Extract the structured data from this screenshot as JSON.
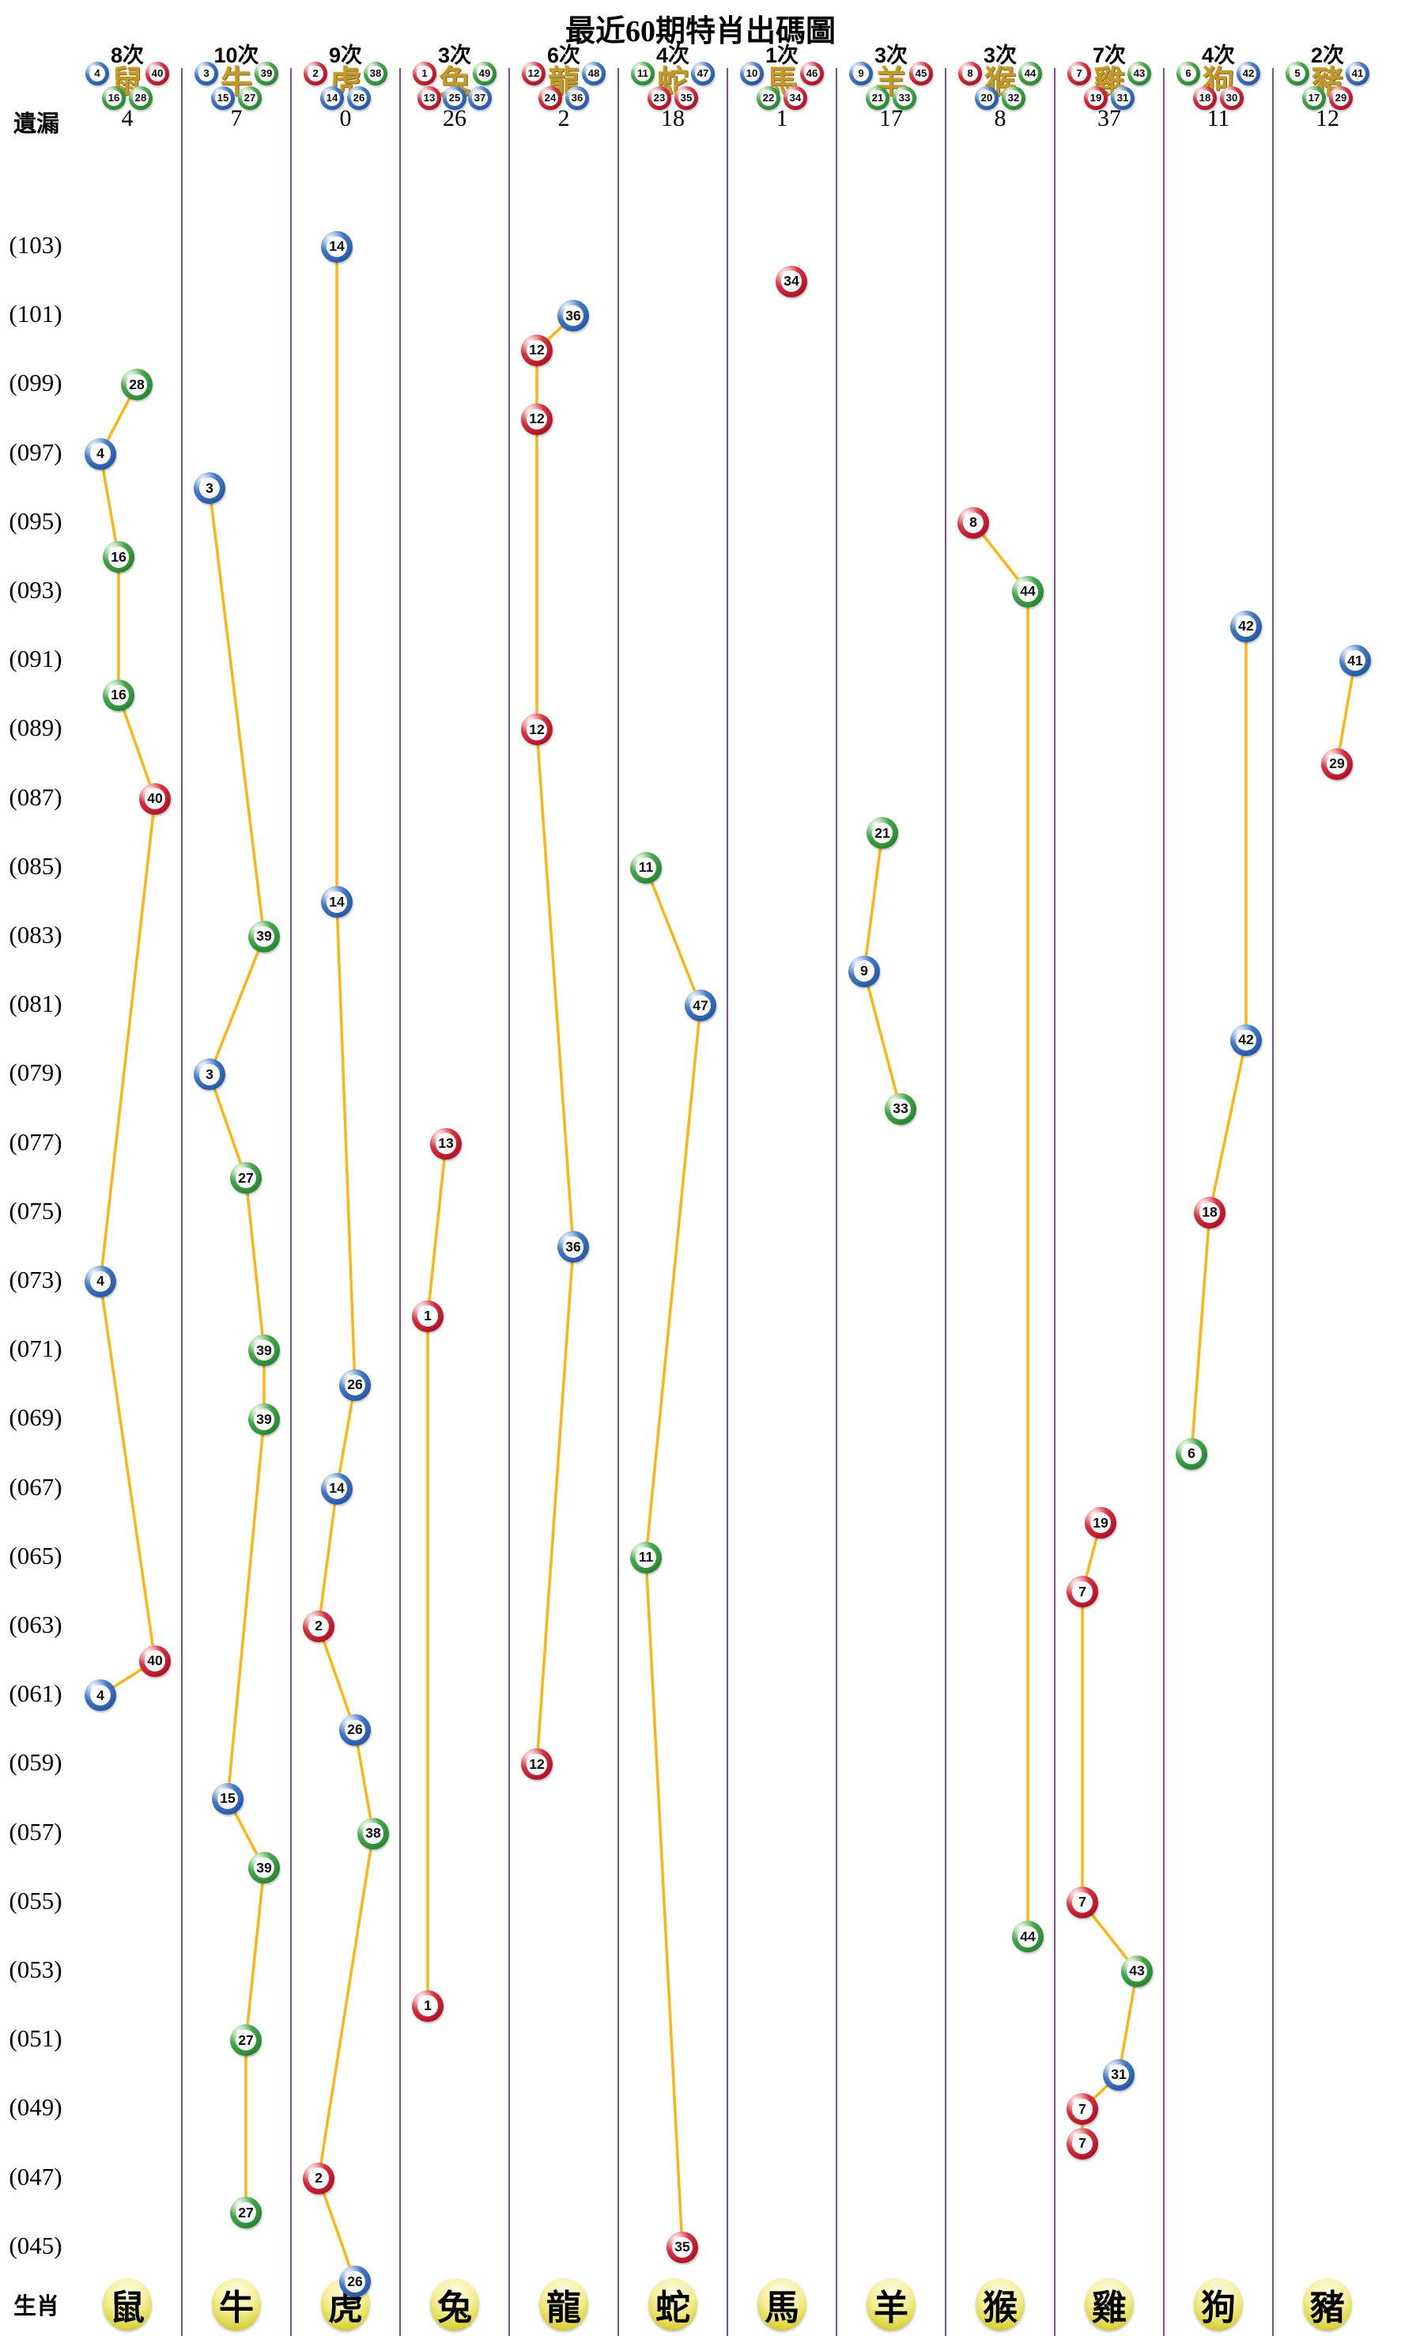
{
  "title": "最近60期特肖出碼圖",
  "labels": {
    "missing": "遺漏",
    "zodiac": "生肖"
  },
  "colors": {
    "red": "#C11F2E",
    "blue": "#2A5CAC",
    "green": "#2C8A35",
    "line": "#FDB515",
    "separator": "#7C4FA0",
    "badge_yellow": "#E3DB48",
    "glyph_gold": "#C2992E"
  },
  "chart_data": {
    "type": "scatter",
    "title": "最近60期特肖出碼圖",
    "x_categories": [
      "鼠",
      "牛",
      "虎",
      "兔",
      "龍",
      "蛇",
      "馬",
      "羊",
      "猴",
      "雞",
      "狗",
      "豬"
    ],
    "period_axis": {
      "top_period": 103,
      "bottom_period": 44,
      "tick_step": 2
    },
    "row_labels": [
      "(103)",
      "(101)",
      "(099)",
      "(097)",
      "(095)",
      "(093)",
      "(091)",
      "(089)",
      "(087)",
      "(085)",
      "(083)",
      "(081)",
      "(079)",
      "(077)",
      "(075)",
      "(073)",
      "(071)",
      "(069)",
      "(067)",
      "(065)",
      "(063)",
      "(061)",
      "(059)",
      "(057)",
      "(055)",
      "(053)",
      "(051)",
      "(049)",
      "(047)",
      "(045)"
    ],
    "columns": [
      {
        "zodiac": "鼠",
        "times": "8次",
        "missing": "4",
        "header_row1": [
          {
            "n": "4",
            "c": "blue"
          },
          {
            "n": "40",
            "c": "red"
          }
        ],
        "header_row2": [
          {
            "n": "16",
            "c": "green"
          },
          {
            "n": "28",
            "c": "green"
          }
        ],
        "points": [
          {
            "n": "28",
            "c": "green",
            "p": 99
          },
          {
            "n": "4",
            "c": "blue",
            "p": 97
          },
          {
            "n": "16",
            "c": "green",
            "p": 94
          },
          {
            "n": "16",
            "c": "green",
            "p": 90
          },
          {
            "n": "40",
            "c": "red",
            "p": 87
          },
          {
            "n": "4",
            "c": "blue",
            "p": 73
          },
          {
            "n": "40",
            "c": "red",
            "p": 62
          },
          {
            "n": "4",
            "c": "blue",
            "p": 61
          }
        ]
      },
      {
        "zodiac": "牛",
        "times": "10次",
        "missing": "7",
        "header_row1": [
          {
            "n": "3",
            "c": "blue"
          },
          {
            "n": "39",
            "c": "green"
          }
        ],
        "header_row2": [
          {
            "n": "15",
            "c": "blue"
          },
          {
            "n": "27",
            "c": "green"
          }
        ],
        "points": [
          {
            "n": "3",
            "c": "blue",
            "p": 96
          },
          {
            "n": "39",
            "c": "green",
            "p": 83
          },
          {
            "n": "3",
            "c": "blue",
            "p": 79
          },
          {
            "n": "27",
            "c": "green",
            "p": 76
          },
          {
            "n": "39",
            "c": "green",
            "p": 71
          },
          {
            "n": "39",
            "c": "green",
            "p": 69
          },
          {
            "n": "15",
            "c": "blue",
            "p": 58
          },
          {
            "n": "39",
            "c": "green",
            "p": 56
          },
          {
            "n": "27",
            "c": "green",
            "p": 51
          },
          {
            "n": "27",
            "c": "green",
            "p": 46
          }
        ]
      },
      {
        "zodiac": "虎",
        "times": "9次",
        "missing": "0",
        "header_row1": [
          {
            "n": "2",
            "c": "red"
          },
          {
            "n": "38",
            "c": "green"
          }
        ],
        "header_row2": [
          {
            "n": "14",
            "c": "blue"
          },
          {
            "n": "26",
            "c": "blue"
          }
        ],
        "points": [
          {
            "n": "14",
            "c": "blue",
            "p": 103
          },
          {
            "n": "14",
            "c": "blue",
            "p": 84
          },
          {
            "n": "26",
            "c": "blue",
            "p": 70
          },
          {
            "n": "14",
            "c": "blue",
            "p": 67
          },
          {
            "n": "2",
            "c": "red",
            "p": 63
          },
          {
            "n": "26",
            "c": "blue",
            "p": 60
          },
          {
            "n": "38",
            "c": "green",
            "p": 57
          },
          {
            "n": "2",
            "c": "red",
            "p": 47
          },
          {
            "n": "26",
            "c": "blue",
            "p": 44
          }
        ]
      },
      {
        "zodiac": "兔",
        "times": "3次",
        "missing": "26",
        "header_row1": [
          {
            "n": "1",
            "c": "red"
          },
          {
            "n": "49",
            "c": "green"
          }
        ],
        "header_row2": [
          {
            "n": "13",
            "c": "red"
          },
          {
            "n": "25",
            "c": "blue"
          },
          {
            "n": "37",
            "c": "blue"
          }
        ],
        "points": [
          {
            "n": "13",
            "c": "red",
            "p": 77
          },
          {
            "n": "1",
            "c": "red",
            "p": 72
          },
          {
            "n": "1",
            "c": "red",
            "p": 52
          }
        ]
      },
      {
        "zodiac": "龍",
        "times": "6次",
        "missing": "2",
        "header_row1": [
          {
            "n": "12",
            "c": "red"
          },
          {
            "n": "48",
            "c": "blue"
          }
        ],
        "header_row2": [
          {
            "n": "24",
            "c": "red"
          },
          {
            "n": "36",
            "c": "blue"
          }
        ],
        "points": [
          {
            "n": "36",
            "c": "blue",
            "p": 101
          },
          {
            "n": "12",
            "c": "red",
            "p": 100
          },
          {
            "n": "12",
            "c": "red",
            "p": 98
          },
          {
            "n": "12",
            "c": "red",
            "p": 89
          },
          {
            "n": "36",
            "c": "blue",
            "p": 74
          },
          {
            "n": "12",
            "c": "red",
            "p": 59
          }
        ]
      },
      {
        "zodiac": "蛇",
        "times": "4次",
        "missing": "18",
        "header_row1": [
          {
            "n": "11",
            "c": "green"
          },
          {
            "n": "47",
            "c": "blue"
          }
        ],
        "header_row2": [
          {
            "n": "23",
            "c": "red"
          },
          {
            "n": "35",
            "c": "red"
          }
        ],
        "points": [
          {
            "n": "11",
            "c": "green",
            "p": 85
          },
          {
            "n": "47",
            "c": "blue",
            "p": 81
          },
          {
            "n": "11",
            "c": "green",
            "p": 65
          },
          {
            "n": "35",
            "c": "red",
            "p": 45
          }
        ]
      },
      {
        "zodiac": "馬",
        "times": "1次",
        "missing": "1",
        "header_row1": [
          {
            "n": "10",
            "c": "blue"
          },
          {
            "n": "46",
            "c": "red"
          }
        ],
        "header_row2": [
          {
            "n": "22",
            "c": "green"
          },
          {
            "n": "34",
            "c": "red"
          }
        ],
        "points": [
          {
            "n": "34",
            "c": "red",
            "p": 102
          }
        ]
      },
      {
        "zodiac": "羊",
        "times": "3次",
        "missing": "17",
        "header_row1": [
          {
            "n": "9",
            "c": "blue"
          },
          {
            "n": "45",
            "c": "red"
          }
        ],
        "header_row2": [
          {
            "n": "21",
            "c": "green"
          },
          {
            "n": "33",
            "c": "green"
          }
        ],
        "points": [
          {
            "n": "21",
            "c": "green",
            "p": 86
          },
          {
            "n": "9",
            "c": "blue",
            "p": 82
          },
          {
            "n": "33",
            "c": "green",
            "p": 78
          }
        ]
      },
      {
        "zodiac": "猴",
        "times": "3次",
        "missing": "8",
        "header_row1": [
          {
            "n": "8",
            "c": "red"
          },
          {
            "n": "44",
            "c": "green"
          }
        ],
        "header_row2": [
          {
            "n": "20",
            "c": "blue"
          },
          {
            "n": "32",
            "c": "green"
          }
        ],
        "points": [
          {
            "n": "8",
            "c": "red",
            "p": 95
          },
          {
            "n": "44",
            "c": "green",
            "p": 93
          },
          {
            "n": "44",
            "c": "green",
            "p": 54
          }
        ]
      },
      {
        "zodiac": "雞",
        "times": "7次",
        "missing": "37",
        "header_row1": [
          {
            "n": "7",
            "c": "red"
          },
          {
            "n": "43",
            "c": "green"
          }
        ],
        "header_row2": [
          {
            "n": "19",
            "c": "red"
          },
          {
            "n": "31",
            "c": "blue"
          }
        ],
        "points": [
          {
            "n": "19",
            "c": "red",
            "p": 66
          },
          {
            "n": "7",
            "c": "red",
            "p": 64
          },
          {
            "n": "7",
            "c": "red",
            "p": 55
          },
          {
            "n": "43",
            "c": "green",
            "p": 53
          },
          {
            "n": "31",
            "c": "blue",
            "p": 50
          },
          {
            "n": "7",
            "c": "red",
            "p": 49
          },
          {
            "n": "7",
            "c": "red",
            "p": 48
          }
        ]
      },
      {
        "zodiac": "狗",
        "times": "4次",
        "missing": "11",
        "header_row1": [
          {
            "n": "6",
            "c": "green"
          },
          {
            "n": "42",
            "c": "blue"
          }
        ],
        "header_row2": [
          {
            "n": "18",
            "c": "red"
          },
          {
            "n": "30",
            "c": "red"
          }
        ],
        "points": [
          {
            "n": "42",
            "c": "blue",
            "p": 92
          },
          {
            "n": "42",
            "c": "blue",
            "p": 80
          },
          {
            "n": "18",
            "c": "red",
            "p": 75
          },
          {
            "n": "6",
            "c": "green",
            "p": 68
          }
        ]
      },
      {
        "zodiac": "豬",
        "times": "2次",
        "missing": "12",
        "header_row1": [
          {
            "n": "5",
            "c": "green"
          },
          {
            "n": "41",
            "c": "blue"
          }
        ],
        "header_row2": [
          {
            "n": "17",
            "c": "green"
          },
          {
            "n": "29",
            "c": "red"
          }
        ],
        "points": [
          {
            "n": "41",
            "c": "blue",
            "p": 91
          },
          {
            "n": "29",
            "c": "red",
            "p": 88
          }
        ]
      }
    ]
  }
}
